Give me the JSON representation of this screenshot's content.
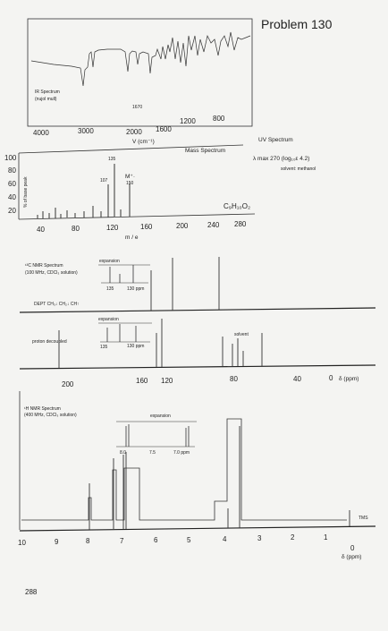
{
  "page_title": "Problem 130",
  "page_number": "288",
  "ir": {
    "label_line1": "IR Spectrum",
    "label_line2": "(nujol mull)",
    "peak_label": "1670",
    "x_ticks": [
      "4000",
      "3000",
      "2000",
      "1600",
      "1200",
      "800"
    ],
    "x_label": "V (cm⁻¹)"
  },
  "ms": {
    "label": "Mass Spectrum",
    "y_axis_label": "% of base peak",
    "y_ticks": [
      "100",
      "80",
      "60",
      "40",
      "20"
    ],
    "x_ticks": [
      "40",
      "80",
      "120",
      "160",
      "200",
      "240",
      "280"
    ],
    "x_label": "m / e",
    "peak_labels": [
      "135",
      "107"
    ],
    "molecular_ion_label": "M⁺·",
    "molecular_ion_value": "150",
    "formula": "C₉H₁₀O₂"
  },
  "uv": {
    "title": "UV Spectrum",
    "lambda_line": "λ max 270 (log₁₀ε 4.2)",
    "solvent": "solvent: methanol"
  },
  "c13": {
    "label_line1": "¹³C NMR Spectrum",
    "label_line2": "(100 MHz, CDCl₃ solution)",
    "expansion": "expansion",
    "exp_ticks": [
      "135",
      "130 ppm"
    ],
    "dept_label": "DEPT  CH₃↓ CH₂↓ CH↑",
    "decoupled_label": "proton decoupled",
    "solvent": "solvent",
    "x_ticks": [
      "200",
      "160",
      "120",
      "80",
      "40",
      "0"
    ],
    "x_unit": "δ (ppm)"
  },
  "h1": {
    "label_line1": "¹H NMR Spectrum",
    "label_line2": "(400 MHz, CDCl₃ solution)",
    "expansion": "expansion",
    "exp_ticks": [
      "8.0",
      "7.5",
      "7.0 ppm"
    ],
    "tms": "TMS",
    "x_ticks": [
      "10",
      "9",
      "8",
      "7",
      "6",
      "5",
      "4",
      "3",
      "2",
      "1",
      "0"
    ],
    "x_unit": "δ (ppm)"
  }
}
